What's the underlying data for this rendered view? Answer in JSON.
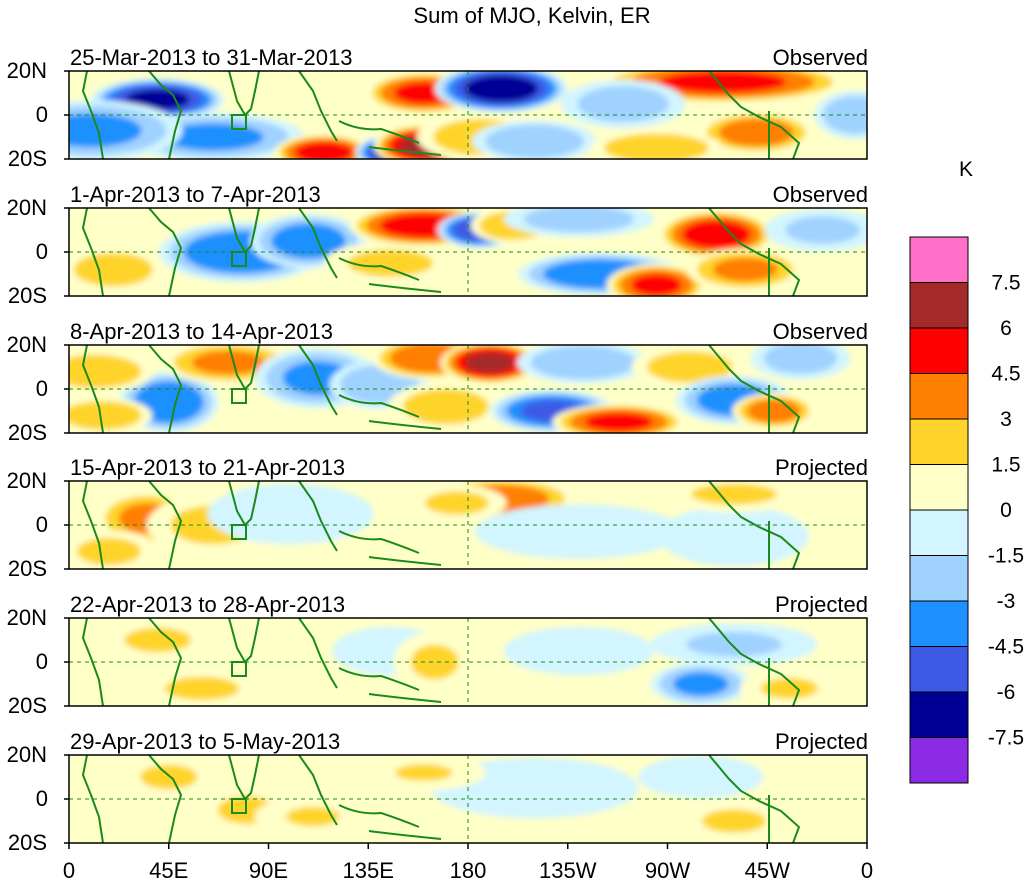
{
  "chart_data": {
    "type": "heatmap",
    "title": "Sum of MJO, Kelvin, ER",
    "units": "K",
    "colorbar": {
      "labels": [
        "7.5",
        "6",
        "4.5",
        "3",
        "1.5",
        "0",
        "-1.5",
        "-3",
        "-4.5",
        "-6",
        "-7.5"
      ],
      "colors": [
        "#ff6ec7",
        "#a52a2a",
        "#ff0000",
        "#ff7f00",
        "#ffd42a",
        "#ffffc8",
        "#d2f5ff",
        "#a0d2ff",
        "#1e90ff",
        "#3c5ae6",
        "#000096",
        "#8c2ae6"
      ]
    },
    "x_ticks": [
      "0",
      "45E",
      "90E",
      "135E",
      "180",
      "135W",
      "90W",
      "45W",
      "0"
    ],
    "y_ticks": [
      "20N",
      "0",
      "20S"
    ],
    "xlim": [
      0,
      360
    ],
    "ylim": [
      -20,
      20
    ],
    "panels": [
      {
        "period": "25-Mar-2013 to 31-Mar-2013",
        "status": "Observed",
        "anomalies": [
          {
            "lon": 40,
            "lat": 7,
            "value": -6.5,
            "wx": 16,
            "wy": 7
          },
          {
            "lon": 65,
            "lat": -10,
            "value": -3.5,
            "wx": 22,
            "wy": 8
          },
          {
            "lon": 10,
            "lat": -7,
            "value": -3.5,
            "wx": 22,
            "wy": 10
          },
          {
            "lon": 115,
            "lat": -17,
            "value": 5.5,
            "wx": 12,
            "wy": 6
          },
          {
            "lon": 148,
            "lat": -17,
            "value": -7.0,
            "wx": 10,
            "wy": 6
          },
          {
            "lon": 160,
            "lat": -14,
            "value": 6.5,
            "wx": 12,
            "wy": 7
          },
          {
            "lon": 160,
            "lat": 10,
            "value": 5.0,
            "wx": 14,
            "wy": 7
          },
          {
            "lon": 195,
            "lat": 12,
            "value": -7.0,
            "wx": 16,
            "wy": 8
          },
          {
            "lon": 185,
            "lat": -10,
            "value": 2.5,
            "wx": 15,
            "wy": 8
          },
          {
            "lon": 210,
            "lat": -12,
            "value": -3.0,
            "wx": 15,
            "wy": 7
          },
          {
            "lon": 295,
            "lat": 15,
            "value": 5.0,
            "wx": 30,
            "wy": 7
          },
          {
            "lon": 310,
            "lat": -8,
            "value": 4.0,
            "wx": 14,
            "wy": 7
          },
          {
            "lon": 265,
            "lat": -15,
            "value": 3.0,
            "wx": 16,
            "wy": 6
          },
          {
            "lon": 250,
            "lat": 5,
            "value": -2.5,
            "wx": 15,
            "wy": 8
          },
          {
            "lon": 355,
            "lat": 0,
            "value": -3.0,
            "wx": 10,
            "wy": 8
          }
        ]
      },
      {
        "period": "1-Apr-2013 to 7-Apr-2013",
        "status": "Observed",
        "anomalies": [
          {
            "lon": 78,
            "lat": 0,
            "value": -4.5,
            "wx": 20,
            "wy": 10
          },
          {
            "lon": 108,
            "lat": 5,
            "value": -4.0,
            "wx": 14,
            "wy": 9
          },
          {
            "lon": 20,
            "lat": -8,
            "value": 3.0,
            "wx": 12,
            "wy": 7
          },
          {
            "lon": 145,
            "lat": -5,
            "value": 2.0,
            "wx": 16,
            "wy": 7
          },
          {
            "lon": 160,
            "lat": 12,
            "value": 5.5,
            "wx": 18,
            "wy": 7
          },
          {
            "lon": 185,
            "lat": 10,
            "value": -6.0,
            "wx": 10,
            "wy": 6
          },
          {
            "lon": 200,
            "lat": 12,
            "value": 3.0,
            "wx": 10,
            "wy": 6
          },
          {
            "lon": 240,
            "lat": -10,
            "value": -4.5,
            "wx": 20,
            "wy": 7
          },
          {
            "lon": 265,
            "lat": -15,
            "value": 5.0,
            "wx": 12,
            "wy": 7
          },
          {
            "lon": 292,
            "lat": 8,
            "value": 5.5,
            "wx": 14,
            "wy": 8
          },
          {
            "lon": 305,
            "lat": -8,
            "value": 3.5,
            "wx": 14,
            "wy": 7
          },
          {
            "lon": 230,
            "lat": 15,
            "value": -2.5,
            "wx": 18,
            "wy": 6
          },
          {
            "lon": 340,
            "lat": 10,
            "value": -2.0,
            "wx": 14,
            "wy": 7
          }
        ]
      },
      {
        "period": "8-Apr-2013 to 14-Apr-2013",
        "status": "Observed",
        "anomalies": [
          {
            "lon": 45,
            "lat": -6,
            "value": -4.5,
            "wx": 12,
            "wy": 10
          },
          {
            "lon": 72,
            "lat": 12,
            "value": 3.5,
            "wx": 16,
            "wy": 7
          },
          {
            "lon": 12,
            "lat": 8,
            "value": 3.0,
            "wx": 14,
            "wy": 7
          },
          {
            "lon": 15,
            "lat": -12,
            "value": 3.0,
            "wx": 12,
            "wy": 6
          },
          {
            "lon": 112,
            "lat": 5,
            "value": -3.5,
            "wx": 15,
            "wy": 10
          },
          {
            "lon": 140,
            "lat": 2,
            "value": -3.0,
            "wx": 12,
            "wy": 8
          },
          {
            "lon": 163,
            "lat": 14,
            "value": 4.5,
            "wx": 14,
            "wy": 7
          },
          {
            "lon": 190,
            "lat": 12,
            "value": 6.5,
            "wx": 12,
            "wy": 7
          },
          {
            "lon": 170,
            "lat": -8,
            "value": 2.5,
            "wx": 14,
            "wy": 8
          },
          {
            "lon": 218,
            "lat": -10,
            "value": -5.0,
            "wx": 15,
            "wy": 7
          },
          {
            "lon": 248,
            "lat": -15,
            "value": 5.0,
            "wx": 16,
            "wy": 6
          },
          {
            "lon": 232,
            "lat": 12,
            "value": -3.0,
            "wx": 16,
            "wy": 7
          },
          {
            "lon": 280,
            "lat": 10,
            "value": 2.5,
            "wx": 14,
            "wy": 7
          },
          {
            "lon": 300,
            "lat": -5,
            "value": -4.0,
            "wx": 14,
            "wy": 8
          },
          {
            "lon": 318,
            "lat": -10,
            "value": 4.0,
            "wx": 10,
            "wy": 6
          },
          {
            "lon": 330,
            "lat": 14,
            "value": -2.5,
            "wx": 12,
            "wy": 7
          }
        ]
      },
      {
        "period": "15-Apr-2013 to 21-Apr-2013",
        "status": "Projected",
        "anomalies": [
          {
            "lon": 35,
            "lat": 3,
            "value": 3.5,
            "wx": 12,
            "wy": 9
          },
          {
            "lon": 65,
            "lat": 0,
            "value": 2.0,
            "wx": 16,
            "wy": 10
          },
          {
            "lon": 18,
            "lat": -12,
            "value": 2.0,
            "wx": 12,
            "wy": 7
          },
          {
            "lon": 100,
            "lat": 5,
            "value": -1.5,
            "wx": 20,
            "wy": 10
          },
          {
            "lon": 195,
            "lat": 12,
            "value": 4.0,
            "wx": 18,
            "wy": 7
          },
          {
            "lon": 175,
            "lat": 10,
            "value": 2.0,
            "wx": 12,
            "wy": 6
          },
          {
            "lon": 230,
            "lat": -3,
            "value": -1.5,
            "wx": 25,
            "wy": 9
          },
          {
            "lon": 300,
            "lat": -5,
            "value": -1.5,
            "wx": 18,
            "wy": 10
          },
          {
            "lon": 300,
            "lat": 14,
            "value": 1.8,
            "wx": 18,
            "wy": 6
          }
        ]
      },
      {
        "period": "22-Apr-2013 to 28-Apr-2013",
        "status": "Projected",
        "anomalies": [
          {
            "lon": 60,
            "lat": -12,
            "value": 2.0,
            "wx": 14,
            "wy": 6
          },
          {
            "lon": 40,
            "lat": 10,
            "value": 1.8,
            "wx": 14,
            "wy": 7
          },
          {
            "lon": 145,
            "lat": 5,
            "value": -1.5,
            "wx": 14,
            "wy": 8
          },
          {
            "lon": 165,
            "lat": 0,
            "value": 1.8,
            "wx": 10,
            "wy": 10
          },
          {
            "lon": 285,
            "lat": -10,
            "value": -3.5,
            "wx": 12,
            "wy": 7
          },
          {
            "lon": 300,
            "lat": 8,
            "value": -1.8,
            "wx": 20,
            "wy": 7
          },
          {
            "lon": 230,
            "lat": 5,
            "value": -1.5,
            "wx": 18,
            "wy": 8
          },
          {
            "lon": 325,
            "lat": -12,
            "value": 1.8,
            "wx": 12,
            "wy": 6
          },
          {
            "lon": 20,
            "lat": -5,
            "value": 1.5,
            "wx": 12,
            "wy": 8
          }
        ]
      },
      {
        "period": "29-Apr-2013 to 5-May-2013",
        "status": "Projected",
        "anomalies": [
          {
            "lon": 45,
            "lat": 10,
            "value": 1.8,
            "wx": 12,
            "wy": 7
          },
          {
            "lon": 80,
            "lat": -5,
            "value": 1.8,
            "wx": 12,
            "wy": 8
          },
          {
            "lon": 110,
            "lat": -8,
            "value": 1.6,
            "wx": 14,
            "wy": 7
          },
          {
            "lon": 210,
            "lat": 5,
            "value": -1.5,
            "wx": 25,
            "wy": 10
          },
          {
            "lon": 300,
            "lat": -10,
            "value": 2.0,
            "wx": 12,
            "wy": 6
          },
          {
            "lon": 285,
            "lat": 10,
            "value": -1.5,
            "wx": 15,
            "wy": 7
          },
          {
            "lon": 10,
            "lat": -12,
            "value": 1.5,
            "wx": 12,
            "wy": 6
          },
          {
            "lon": 160,
            "lat": 12,
            "value": 1.6,
            "wx": 15,
            "wy": 6
          }
        ]
      }
    ]
  }
}
